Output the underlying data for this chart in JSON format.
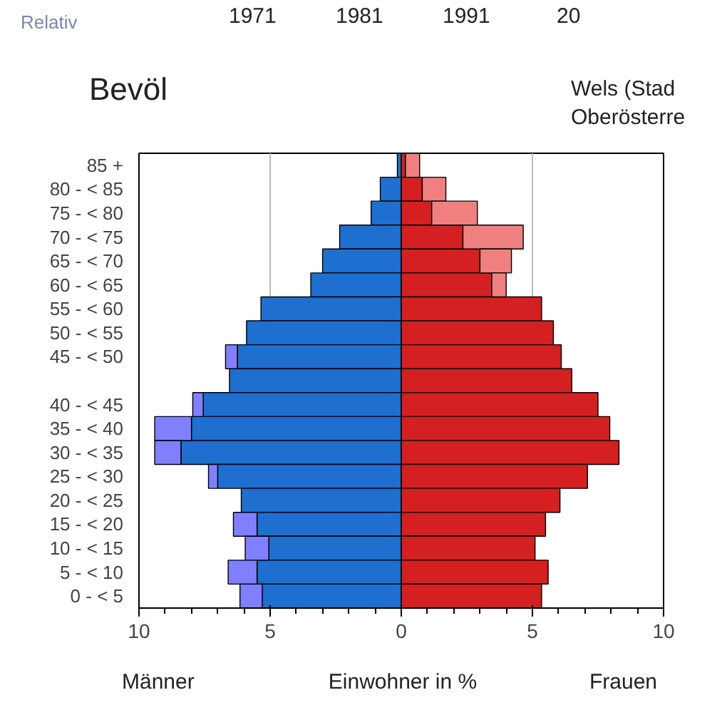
{
  "chart_data": {
    "type": "bar",
    "orientation": "horizontal",
    "stacked": true,
    "title": "Bevöl",
    "xlabel": "Einwohner in %",
    "categories": [
      "85 +",
      "80 - < 85",
      "75 - < 80",
      "70 - < 75",
      "65 - < 70",
      "60 - < 65",
      "55 - < 60",
      "50 - < 55",
      "45 - < 50",
      null,
      "40 - < 45",
      "35 - < 40",
      "30 - < 35",
      "25 - < 30",
      "20 - < 25",
      "15 - < 20",
      "10 - < 15",
      "5 - < 10",
      "0 - < 5"
    ],
    "series": [
      {
        "color": "#1e6fd0",
        "values": [
          -0.15,
          -0.8,
          -1.15,
          -2.35,
          -3.0,
          -3.45,
          -5.35,
          -5.9,
          -6.25,
          -6.55,
          -7.55,
          -8.0,
          -8.4,
          -7.0,
          -6.1,
          -5.5,
          -5.05,
          -5.5,
          -5.3
        ]
      },
      {
        "color": "#8080ff",
        "values": [
          null,
          null,
          null,
          null,
          null,
          null,
          null,
          null,
          -0.45,
          null,
          -0.4,
          -1.4,
          -1.0,
          -0.35,
          null,
          -0.9,
          -0.9,
          -1.1,
          -0.85
        ]
      },
      {
        "color": "#d42020",
        "values": [
          0.16,
          0.8,
          1.16,
          2.35,
          3.0,
          3.45,
          5.35,
          5.8,
          6.1,
          6.5,
          7.5,
          7.95,
          8.3,
          7.1,
          6.05,
          5.5,
          5.1,
          5.6,
          5.35
        ]
      },
      {
        "color": "#f08080",
        "values": [
          0.54,
          0.9,
          1.74,
          2.3,
          1.2,
          0.55,
          null,
          null,
          null,
          null,
          null,
          null,
          null,
          null,
          null,
          null,
          null,
          null,
          null
        ]
      }
    ],
    "xlim": [
      -10,
      10
    ],
    "xticks": [
      {
        "value": -10,
        "label": "10"
      },
      {
        "value": -5,
        "label": "5"
      },
      0,
      5,
      10
    ],
    "grid": "x",
    "annotations": [
      "Männer",
      "Frauen",
      "Relativ",
      "1971",
      "1981",
      "1991",
      "20",
      "Wels (Stad",
      "Oberösterre"
    ]
  }
}
